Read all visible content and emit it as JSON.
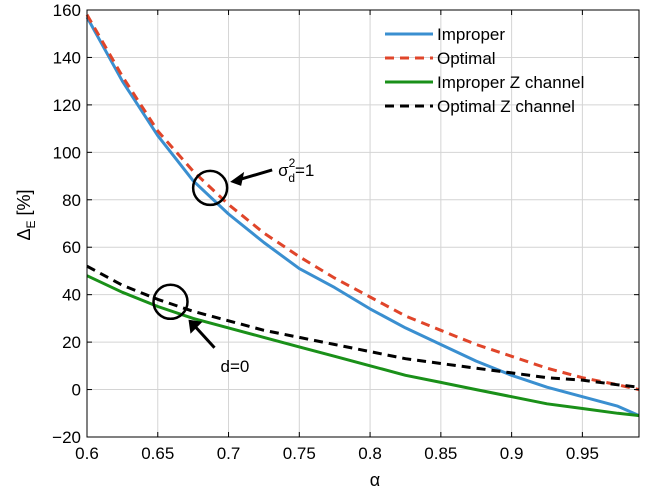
{
  "chart_data": {
    "type": "line",
    "title": "",
    "xlabel": "α",
    "ylabel": "Δ",
    "ylabel_sub": "E",
    "ylabel_unit": " [%]",
    "xlim": [
      0.6,
      0.99
    ],
    "ylim": [
      -20,
      160
    ],
    "grid": true,
    "legend_position": "top-right",
    "x_ticks": [
      0.6,
      0.65,
      0.7,
      0.75,
      0.8,
      0.85,
      0.9,
      0.95
    ],
    "x_tick_labels": [
      "0.6",
      "0.65",
      "0.7",
      "0.75",
      "0.8",
      "0.85",
      "0.9",
      "0.95"
    ],
    "y_ticks": [
      -20,
      0,
      20,
      40,
      60,
      80,
      100,
      120,
      140,
      160
    ],
    "y_tick_labels": [
      "−20",
      "0",
      "20",
      "40",
      "60",
      "80",
      "100",
      "120",
      "140",
      "160"
    ],
    "series": [
      {
        "name": "Improper",
        "color": "#3a8fd0",
        "dash": "solid",
        "x": [
          0.6,
          0.625,
          0.65,
          0.675,
          0.7,
          0.725,
          0.75,
          0.775,
          0.8,
          0.825,
          0.85,
          0.875,
          0.9,
          0.925,
          0.95,
          0.975,
          0.99
        ],
        "y": [
          157,
          130,
          107,
          88,
          74,
          62,
          51,
          43,
          34,
          26,
          19,
          12,
          6,
          1,
          -3,
          -7,
          -11
        ]
      },
      {
        "name": "Optimal",
        "color": "#e0452a",
        "dash": "dashed",
        "x": [
          0.6,
          0.625,
          0.65,
          0.675,
          0.7,
          0.725,
          0.75,
          0.775,
          0.8,
          0.825,
          0.85,
          0.875,
          0.9,
          0.925,
          0.95,
          0.975,
          0.99
        ],
        "y": [
          158,
          132,
          109,
          92,
          78,
          66,
          56,
          47,
          39,
          31,
          25,
          19,
          14,
          9,
          5,
          2,
          0
        ]
      },
      {
        "name": "Improper Z channel",
        "color": "#1a9019",
        "dash": "solid",
        "x": [
          0.6,
          0.625,
          0.65,
          0.675,
          0.7,
          0.725,
          0.75,
          0.775,
          0.8,
          0.825,
          0.85,
          0.875,
          0.9,
          0.925,
          0.95,
          0.975,
          0.99
        ],
        "y": [
          48,
          41,
          35,
          30,
          26,
          22,
          18,
          14,
          10,
          6,
          3,
          0,
          -3,
          -6,
          -8,
          -10,
          -11
        ]
      },
      {
        "name": "Optimal Z channel",
        "color": "#000000",
        "dash": "dashed",
        "x": [
          0.6,
          0.625,
          0.65,
          0.675,
          0.7,
          0.725,
          0.75,
          0.775,
          0.8,
          0.825,
          0.85,
          0.875,
          0.9,
          0.925,
          0.95,
          0.975,
          0.99
        ],
        "y": [
          52,
          44,
          38,
          33,
          29,
          25,
          22,
          19,
          16,
          13,
          11,
          9,
          7,
          5,
          4,
          2,
          1
        ]
      }
    ],
    "annotations": [
      {
        "id": "sigma",
        "text_main": "σ",
        "text_sup": "2",
        "text_sub": "d",
        "text_tail": "=1",
        "circle_x": 0.687,
        "circle_y": 85
      },
      {
        "id": "d0",
        "text": "d=0",
        "circle_x": 0.659,
        "circle_y": 37
      }
    ]
  }
}
